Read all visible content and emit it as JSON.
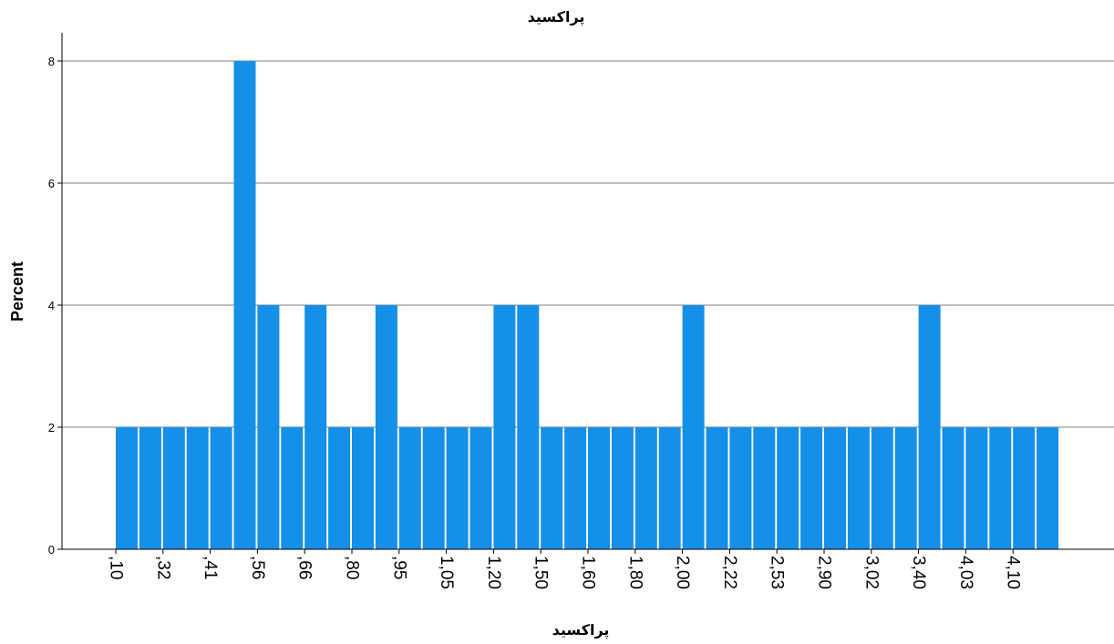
{
  "chart_data": {
    "type": "bar",
    "title": "پراکسید",
    "xlabel": "پراکسید",
    "ylabel": "Percent",
    "ylim": [
      0,
      8
    ],
    "yticks": [
      "0",
      "2",
      "4",
      "6",
      "8"
    ],
    "grid": true,
    "bar_color": "#1490E8",
    "x_tick_labels": [
      ",10",
      ",32",
      ",41",
      ",56",
      ",66",
      ",80",
      ",95",
      "1,05",
      "1,20",
      "1,50",
      "1,60",
      "1,80",
      "2,00",
      "2,22",
      "2,53",
      "2,90",
      "3,02",
      "3,40",
      "4,03",
      "4,10"
    ],
    "values": [
      2,
      2,
      2,
      2,
      2,
      8,
      4,
      2,
      4,
      2,
      2,
      4,
      2,
      2,
      2,
      2,
      4,
      4,
      2,
      2,
      2,
      2,
      2,
      2,
      4,
      2,
      2,
      2,
      2,
      2,
      2,
      2,
      2,
      2,
      4,
      2,
      2,
      2,
      2,
      2
    ]
  }
}
